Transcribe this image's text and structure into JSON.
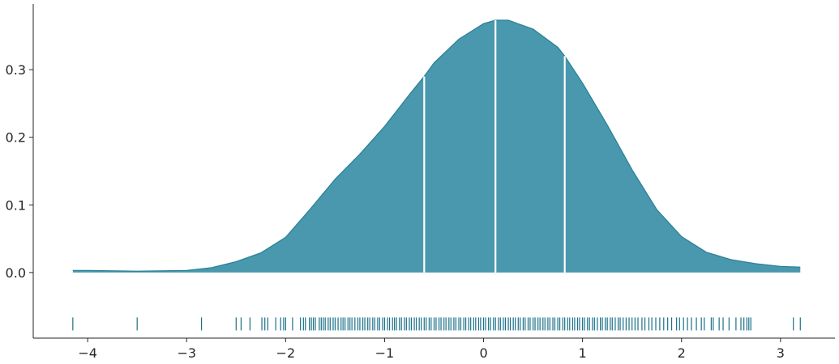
{
  "chart_data": {
    "type": "area",
    "title": "",
    "xlabel": "",
    "ylabel": "",
    "xlim": [
      -4.55,
      3.55
    ],
    "ylim": [
      -0.097,
      0.397
    ],
    "x_ticks": [
      -4,
      -3,
      -2,
      -1,
      0,
      1,
      2,
      3
    ],
    "x_tick_labels": [
      "−4",
      "−3",
      "−2",
      "−1",
      "0",
      "1",
      "2",
      "3"
    ],
    "y_ticks": [
      0.0,
      0.1,
      0.2,
      0.3
    ],
    "y_tick_labels": [
      "0.0",
      "0.1",
      "0.2",
      "0.3"
    ],
    "grid": false,
    "fill_color": "#4a98ae",
    "line_color": "#2b8299",
    "rug_color": "#1a7089",
    "rug_y": -0.076,
    "quartile_lines_x": [
      -0.6,
      0.12,
      0.82
    ],
    "density": {
      "x": [
        -4.15,
        -4.0,
        -3.5,
        -3.0,
        -2.75,
        -2.5,
        -2.25,
        -2.0,
        -1.75,
        -1.5,
        -1.25,
        -1.0,
        -0.75,
        -0.6,
        -0.5,
        -0.25,
        0.0,
        0.12,
        0.25,
        0.5,
        0.75,
        0.82,
        1.0,
        1.25,
        1.5,
        1.75,
        2.0,
        2.25,
        2.5,
        2.75,
        3.0,
        3.2
      ],
      "y": [
        0.003,
        0.003,
        0.002,
        0.003,
        0.007,
        0.016,
        0.029,
        0.052,
        0.094,
        0.138,
        0.175,
        0.216,
        0.263,
        0.29,
        0.31,
        0.345,
        0.368,
        0.373,
        0.373,
        0.36,
        0.333,
        0.32,
        0.28,
        0.218,
        0.152,
        0.093,
        0.053,
        0.03,
        0.019,
        0.013,
        0.009,
        0.008
      ]
    },
    "rug": [
      -4.15,
      -3.5,
      -2.85,
      -2.5,
      -2.45,
      -2.36,
      -2.24,
      -2.21,
      -2.18,
      -2.1,
      -2.05,
      -2.02,
      -2.0,
      -1.93,
      -1.85,
      -1.82,
      -1.8,
      -1.76,
      -1.74,
      -1.72,
      -1.7,
      -1.66,
      -1.64,
      -1.62,
      -1.6,
      -1.57,
      -1.55,
      -1.52,
      -1.5,
      -1.47,
      -1.44,
      -1.42,
      -1.4,
      -1.37,
      -1.35,
      -1.33,
      -1.3,
      -1.27,
      -1.25,
      -1.22,
      -1.2,
      -1.17,
      -1.15,
      -1.12,
      -1.1,
      -1.07,
      -1.05,
      -1.02,
      -1.0,
      -0.97,
      -0.95,
      -0.92,
      -0.9,
      -0.88,
      -0.85,
      -0.83,
      -0.8,
      -0.78,
      -0.75,
      -0.73,
      -0.7,
      -0.68,
      -0.65,
      -0.63,
      -0.6,
      -0.58,
      -0.55,
      -0.53,
      -0.5,
      -0.48,
      -0.45,
      -0.43,
      -0.4,
      -0.38,
      -0.35,
      -0.33,
      -0.3,
      -0.28,
      -0.25,
      -0.23,
      -0.2,
      -0.18,
      -0.15,
      -0.13,
      -0.1,
      -0.08,
      -0.05,
      -0.03,
      0.0,
      0.02,
      0.05,
      0.07,
      0.1,
      0.12,
      0.15,
      0.17,
      0.2,
      0.22,
      0.25,
      0.27,
      0.3,
      0.32,
      0.35,
      0.37,
      0.4,
      0.42,
      0.45,
      0.47,
      0.5,
      0.52,
      0.55,
      0.57,
      0.6,
      0.62,
      0.65,
      0.67,
      0.7,
      0.72,
      0.75,
      0.77,
      0.8,
      0.82,
      0.85,
      0.87,
      0.9,
      0.92,
      0.95,
      0.97,
      1.0,
      1.02,
      1.05,
      1.07,
      1.1,
      1.12,
      1.15,
      1.18,
      1.2,
      1.23,
      1.25,
      1.28,
      1.3,
      1.33,
      1.36,
      1.38,
      1.41,
      1.44,
      1.47,
      1.5,
      1.53,
      1.56,
      1.6,
      1.63,
      1.67,
      1.7,
      1.74,
      1.78,
      1.82,
      1.86,
      1.9,
      1.95,
      1.98,
      2.02,
      2.06,
      2.1,
      2.15,
      2.2,
      2.23,
      2.3,
      2.32,
      2.38,
      2.42,
      2.48,
      2.55,
      2.6,
      2.63,
      2.66,
      2.68,
      2.7,
      3.13,
      3.2
    ]
  }
}
